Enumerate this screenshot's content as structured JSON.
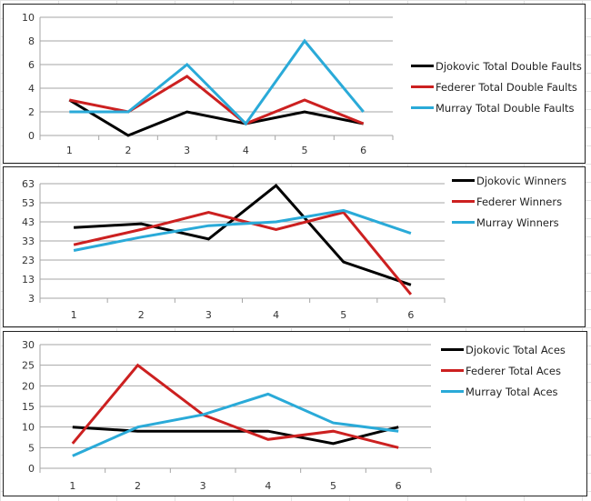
{
  "chart_data": [
    {
      "type": "line",
      "title": "",
      "xlabel": "",
      "ylabel": "",
      "categories": [
        "1",
        "2",
        "3",
        "4",
        "5",
        "6"
      ],
      "yticks": [
        0,
        2,
        4,
        6,
        8,
        10
      ],
      "ylim": [
        0,
        10
      ],
      "grid": true,
      "legend_position": "right",
      "series": [
        {
          "name": "Djokovic Total Double Faults",
          "color": "#000000",
          "values": [
            3,
            0,
            2,
            1,
            2,
            1
          ]
        },
        {
          "name": "Federer Total Double Faults",
          "color": "#cc2020",
          "values": [
            3,
            2,
            5,
            1,
            3,
            1
          ]
        },
        {
          "name": "Murray Total Double Faults",
          "color": "#2aaad8",
          "values": [
            2,
            2,
            6,
            1,
            8,
            2
          ]
        }
      ]
    },
    {
      "type": "line",
      "title": "",
      "xlabel": "",
      "ylabel": "",
      "categories": [
        "1",
        "2",
        "3",
        "4",
        "5",
        "6"
      ],
      "yticks": [
        3,
        13,
        23,
        33,
        43,
        53,
        63
      ],
      "ylim": [
        3,
        63
      ],
      "grid": true,
      "legend_position": "top-right",
      "series": [
        {
          "name": "Djokovic Winners",
          "color": "#000000",
          "values": [
            40,
            42,
            34,
            62,
            22,
            10
          ]
        },
        {
          "name": "Federer Winners",
          "color": "#cc2020",
          "values": [
            31,
            39,
            48,
            39,
            48,
            5
          ]
        },
        {
          "name": "Murray Winners",
          "color": "#2aaad8",
          "values": [
            28,
            35,
            41,
            43,
            49,
            37
          ]
        }
      ]
    },
    {
      "type": "line",
      "title": "",
      "xlabel": "",
      "ylabel": "",
      "categories": [
        "1",
        "2",
        "3",
        "4",
        "5",
        "6"
      ],
      "yticks": [
        0,
        5,
        10,
        15,
        20,
        25,
        30
      ],
      "ylim": [
        0,
        30
      ],
      "grid": true,
      "legend_position": "top-right",
      "series": [
        {
          "name": "Djokovic Total Aces",
          "color": "#000000",
          "values": [
            10,
            9,
            9,
            9,
            6,
            10
          ]
        },
        {
          "name": "Federer Total Aces",
          "color": "#cc2020",
          "values": [
            6,
            25,
            13,
            7,
            9,
            5
          ]
        },
        {
          "name": "Murray Total Aces",
          "color": "#2aaad8",
          "values": [
            3,
            10,
            13,
            18,
            11,
            9
          ]
        }
      ]
    }
  ]
}
